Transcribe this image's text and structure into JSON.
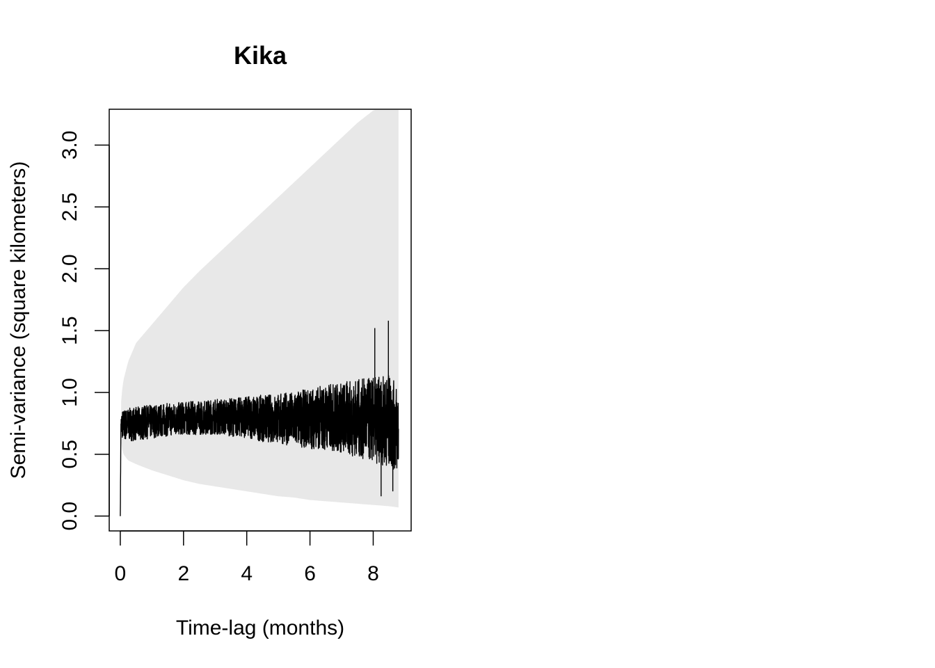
{
  "chart_data": {
    "type": "line",
    "title": "Kika",
    "xlabel": "Time-lag (months)",
    "ylabel": "Semi-variance (square kilometers)",
    "xlim": [
      -0.35,
      9.2
    ],
    "ylim": [
      -0.12,
      3.29
    ],
    "x_ticks": [
      0,
      2,
      4,
      6,
      8
    ],
    "y_ticks": [
      0.0,
      0.5,
      1.0,
      1.5,
      2.0,
      2.5,
      3.0
    ],
    "x_tick_labels": [
      "0",
      "2",
      "4",
      "6",
      "8"
    ],
    "y_tick_labels": [
      "0.0",
      "0.5",
      "1.0",
      "1.5",
      "2.0",
      "2.5",
      "3.0"
    ],
    "grid": false,
    "legend": "none",
    "colors": {
      "series": "#000000",
      "band": "#e8e8e8",
      "frame": "#000000"
    },
    "series": [
      {
        "role": "semivariance",
        "x": [
          0,
          0.02,
          0.05,
          0.1,
          0.25,
          0.5,
          1,
          1.5,
          2,
          2.5,
          3,
          3.5,
          4,
          4.5,
          5,
          5.5,
          6,
          6.5,
          7,
          7.5,
          8,
          8.5,
          8.8
        ],
        "y": [
          0.0,
          0.72,
          0.74,
          0.75,
          0.75,
          0.75,
          0.76,
          0.77,
          0.78,
          0.79,
          0.8,
          0.8,
          0.81,
          0.8,
          0.8,
          0.79,
          0.8,
          0.78,
          0.76,
          0.74,
          0.72,
          0.7,
          0.6
        ],
        "lower": [
          0.0,
          0.64,
          0.58,
          0.56,
          0.55,
          0.55,
          0.57,
          0.59,
          0.6,
          0.6,
          0.6,
          0.58,
          0.56,
          0.52,
          0.5,
          0.47,
          0.44,
          0.42,
          0.38,
          0.34,
          0.28,
          0.24,
          0.18
        ],
        "upper": [
          0.0,
          0.84,
          0.9,
          0.92,
          0.93,
          0.94,
          0.96,
          0.97,
          0.98,
          0.99,
          1.01,
          1.02,
          1.04,
          1.06,
          1.08,
          1.1,
          1.14,
          1.18,
          1.21,
          1.24,
          1.27,
          1.3,
          1.2
        ]
      },
      {
        "role": "confidence-band",
        "x": [
          0,
          0.02,
          0.05,
          0.1,
          0.25,
          0.5,
          1,
          1.5,
          2,
          2.5,
          3,
          3.5,
          4,
          4.5,
          5,
          5.5,
          6,
          6.5,
          7,
          7.5,
          8,
          8.5,
          8.8
        ],
        "lower": [
          0.0,
          0.62,
          0.55,
          0.5,
          0.45,
          0.42,
          0.37,
          0.33,
          0.29,
          0.26,
          0.24,
          0.22,
          0.2,
          0.18,
          0.16,
          0.15,
          0.13,
          0.12,
          0.11,
          0.1,
          0.09,
          0.08,
          0.07
        ],
        "upper": [
          0.0,
          0.9,
          1.0,
          1.1,
          1.25,
          1.4,
          1.55,
          1.7,
          1.85,
          1.98,
          2.1,
          2.22,
          2.34,
          2.46,
          2.58,
          2.7,
          2.82,
          2.94,
          3.06,
          3.18,
          3.28,
          3.32,
          3.35
        ]
      }
    ]
  }
}
